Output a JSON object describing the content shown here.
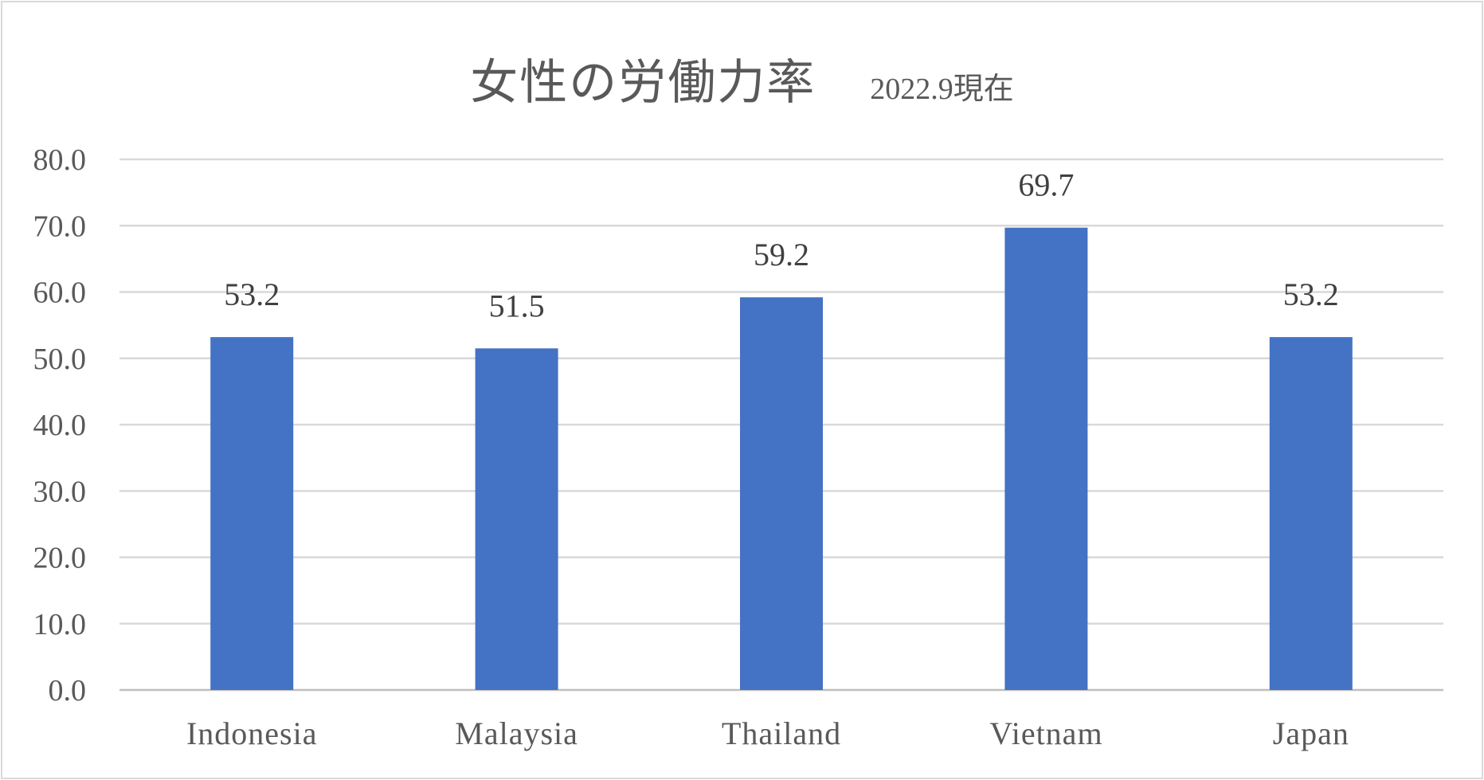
{
  "chart_data": {
    "type": "bar",
    "title": "女性の労働力率",
    "subtitle": "2022.9現在",
    "categories": [
      "Indonesia",
      "Malaysia",
      "Thailand",
      "Vietnam",
      "Japan"
    ],
    "values": [
      53.2,
      51.5,
      59.2,
      69.7,
      53.2
    ],
    "value_labels": [
      "53.2",
      "51.5",
      "59.2",
      "69.7",
      "53.2"
    ],
    "ylim": [
      0,
      80
    ],
    "y_ticks": [
      "0.0",
      "10.0",
      "20.0",
      "30.0",
      "40.0",
      "50.0",
      "60.0",
      "70.0",
      "80.0"
    ],
    "grid": true,
    "legend": "none",
    "bar_color": "#4472C4"
  }
}
